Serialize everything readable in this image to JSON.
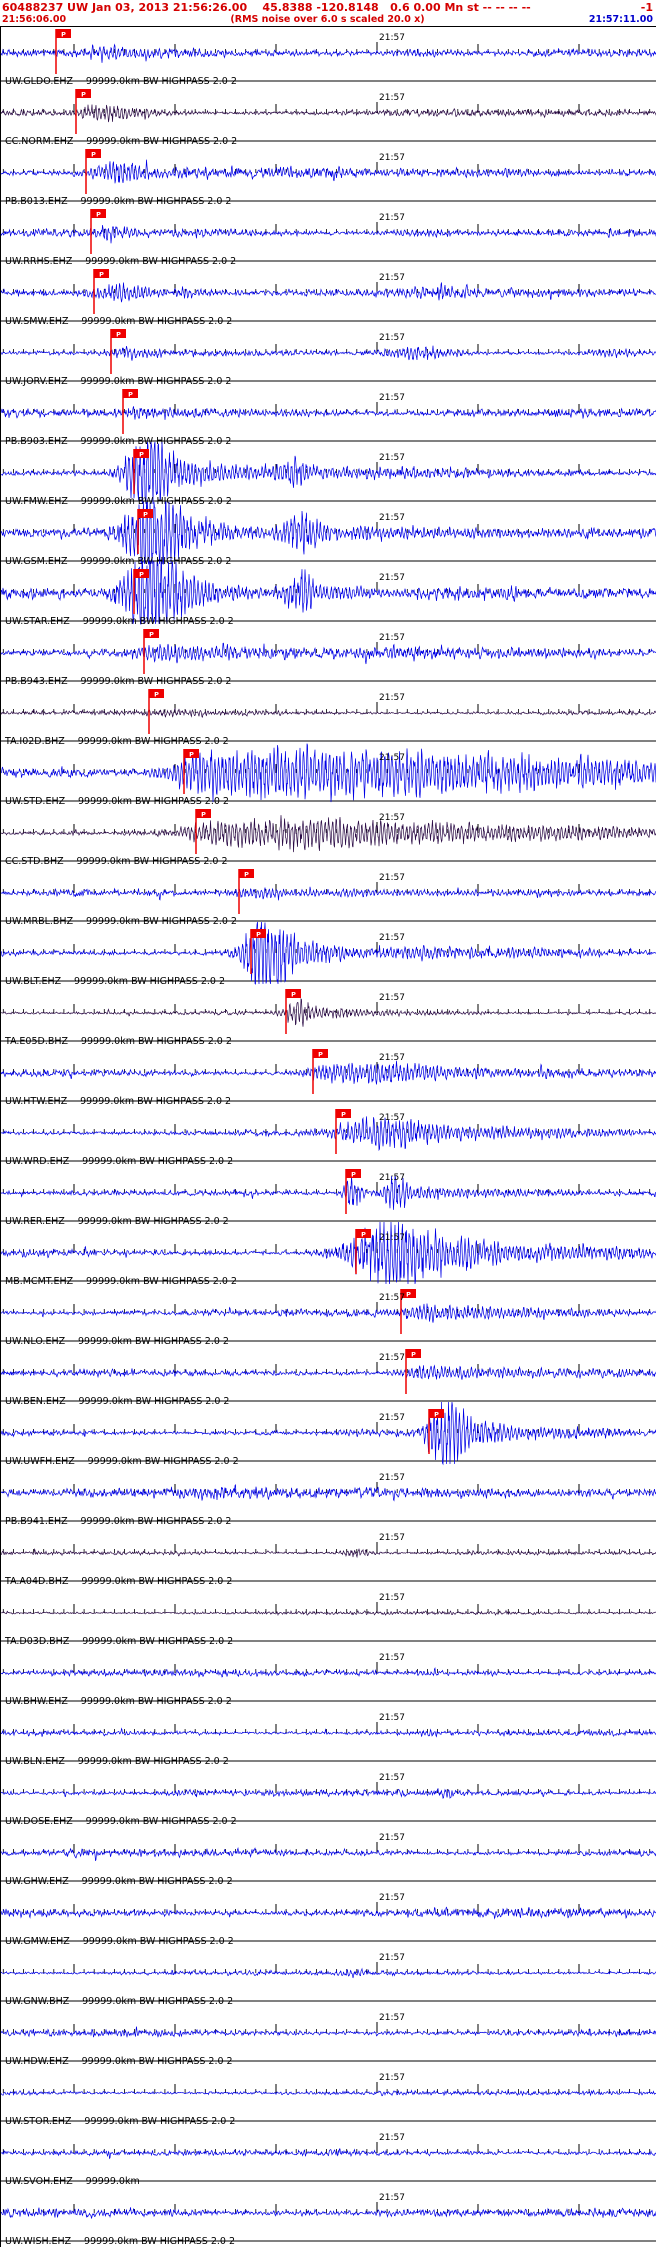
{
  "header": {
    "line1": "60488237 UW Jan 03, 2013 21:56:26.00    45.8388 -120.8148   0.6 0.00 Mn st -- -- -- --",
    "line1_right": "-1",
    "start_time": "21:56:06.00",
    "note": "(RMS noise over 6.0 s scaled 20.0 x)",
    "end_time": "21:57:11.00"
  },
  "time_label": "21:57",
  "pick_label": "P",
  "colors": {
    "blue": "#0000e6",
    "dark": "#2a0a45",
    "pick": "#ee0000",
    "tick": "#000000",
    "header_red": "#d40000",
    "header_blue": "#0000cc"
  },
  "traces": [
    {
      "label": "UW.GLDO.EHZ -- 99999.0km BW HIGHPASS 2.0 2",
      "color": "blue",
      "pick": 55,
      "noise": 2.2,
      "bursts": [
        [
          105,
          18,
          5
        ],
        [
          150,
          30,
          3
        ],
        [
          420,
          30,
          3
        ],
        [
          560,
          40,
          2.5
        ]
      ]
    },
    {
      "label": "CC.NORM.EHZ -- 99999.0km BW HIGHPASS 2.0 2",
      "color": "dark",
      "pick": 75,
      "noise": 1.8,
      "bursts": [
        [
          100,
          20,
          7
        ],
        [
          140,
          40,
          3
        ],
        [
          430,
          25,
          2.5
        ]
      ]
    },
    {
      "label": "PB.B013.EHZ -- 99999.0km BW HIGHPASS 2.0 2",
      "color": "blue",
      "pick": 85,
      "noise": 2.5,
      "bursts": [
        [
          115,
          20,
          9
        ],
        [
          160,
          40,
          4
        ],
        [
          300,
          40,
          3
        ],
        [
          500,
          60,
          2.5
        ]
      ]
    },
    {
      "label": "UW.RRHS.EHZ -- 99999.0km BW HIGHPASS 2.0 2",
      "color": "blue",
      "pick": 90,
      "noise": 2.0,
      "bursts": [
        [
          110,
          15,
          6
        ],
        [
          200,
          50,
          2.5
        ],
        [
          430,
          30,
          3
        ]
      ]
    },
    {
      "label": "UW.SMW.EHZ -- 99999.0km BW HIGHPASS 2.0 2",
      "color": "blue",
      "pick": 93,
      "noise": 2.2,
      "bursts": [
        [
          115,
          20,
          8
        ],
        [
          170,
          45,
          4
        ],
        [
          440,
          30,
          5
        ],
        [
          600,
          40,
          2.5
        ]
      ]
    },
    {
      "label": "UW.JORV.EHZ -- 99999.0km BW HIGHPASS 2.0 2",
      "color": "blue",
      "pick": 110,
      "noise": 1.6,
      "bursts": [
        [
          135,
          22,
          5
        ],
        [
          420,
          28,
          6
        ],
        [
          610,
          30,
          3
        ]
      ]
    },
    {
      "label": "PB.B903.EHZ -- 99999.0km BW HIGHPASS 2.0 2",
      "color": "blue",
      "pick": 122,
      "noise": 2.2,
      "bursts": [
        [
          145,
          18,
          5
        ],
        [
          210,
          45,
          3
        ],
        [
          320,
          40,
          2.5
        ]
      ]
    },
    {
      "label": "UW.FMW.EHZ -- 99999.0km BW HIGHPASS 2.0 2",
      "color": "blue",
      "pick": 133,
      "noise": 2.5,
      "bursts": [
        [
          148,
          16,
          40
        ],
        [
          185,
          30,
          10
        ],
        [
          250,
          40,
          5
        ],
        [
          295,
          12,
          12
        ],
        [
          400,
          60,
          4
        ]
      ]
    },
    {
      "label": "UW.GSM.EHZ -- 99999.0km BW HIGHPASS 2.0 2",
      "color": "blue",
      "pick": 137,
      "noise": 3.0,
      "bursts": [
        [
          150,
          18,
          45
        ],
        [
          190,
          35,
          12
        ],
        [
          300,
          14,
          20
        ],
        [
          360,
          50,
          6
        ],
        [
          500,
          60,
          4
        ]
      ]
    },
    {
      "label": "UW.STAR.EHZ -- 99999.0km BW HIGHPASS 2.0 2",
      "color": "blue",
      "pick": 133,
      "noise": 3.0,
      "bursts": [
        [
          152,
          22,
          45
        ],
        [
          200,
          40,
          10
        ],
        [
          300,
          12,
          22
        ],
        [
          340,
          30,
          6
        ],
        [
          480,
          60,
          4
        ]
      ]
    },
    {
      "label": "PB.B943.EHZ -- 99999.0km BW HIGHPASS 2.0 2",
      "color": "blue",
      "pick": 143,
      "noise": 3.0,
      "bursts": [
        [
          165,
          25,
          6
        ],
        [
          230,
          50,
          4
        ],
        [
          420,
          40,
          4
        ],
        [
          560,
          50,
          3.5
        ]
      ]
    },
    {
      "label": "TA.I02D.BHZ -- 99999.0km BW HIGHPASS 2.0 2",
      "color": "dark",
      "pick": 148,
      "noise": 1.2,
      "bursts": [
        [
          170,
          25,
          3
        ],
        [
          260,
          60,
          1.5
        ]
      ]
    },
    {
      "label": "UW.STD.EHZ -- 99999.0km BW HIGHPASS 2.0 2",
      "color": "blue",
      "pick": 183,
      "noise": 3.0,
      "bursts": [
        [
          210,
          30,
          16
        ],
        [
          280,
          60,
          18
        ],
        [
          380,
          70,
          16
        ],
        [
          500,
          80,
          12
        ],
        [
          610,
          60,
          10
        ]
      ]
    },
    {
      "label": "CC.STD.BHZ -- 99999.0km BW HIGHPASS 2.0 2",
      "color": "dark",
      "pick": 195,
      "noise": 1.8,
      "bursts": [
        [
          215,
          25,
          8
        ],
        [
          280,
          50,
          11
        ],
        [
          370,
          60,
          10
        ],
        [
          480,
          70,
          7
        ],
        [
          600,
          60,
          5
        ]
      ]
    },
    {
      "label": "UW.MRBL.BHZ -- 99999.0km BW HIGHPASS 2.0 2",
      "color": "blue",
      "pick": 238,
      "noise": 1.6,
      "bursts": [
        [
          255,
          20,
          4
        ],
        [
          330,
          60,
          3
        ],
        [
          480,
          70,
          2
        ]
      ]
    },
    {
      "label": "UW.BLT.EHZ -- 99999.0km BW HIGHPASS 2.0 2",
      "color": "blue",
      "pick": 250,
      "noise": 2.0,
      "bursts": [
        [
          265,
          16,
          40
        ],
        [
          300,
          25,
          10
        ],
        [
          380,
          60,
          5
        ],
        [
          520,
          80,
          3.5
        ]
      ]
    },
    {
      "label": "TA.E05D.BHZ -- 99999.0km BW HIGHPASS 2.0 2",
      "color": "dark",
      "pick": 285,
      "noise": 1.0,
      "bursts": [
        [
          297,
          10,
          12
        ],
        [
          330,
          30,
          4
        ],
        [
          420,
          60,
          2
        ]
      ]
    },
    {
      "label": "UW.HTW.EHZ -- 99999.0km BW HIGHPASS 2.0 2",
      "color": "blue",
      "pick": 312,
      "noise": 1.8,
      "bursts": [
        [
          330,
          20,
          6
        ],
        [
          380,
          40,
          9
        ],
        [
          450,
          50,
          4
        ],
        [
          570,
          60,
          2.5
        ]
      ]
    },
    {
      "label": "UW.WRD.EHZ -- 99999.0km BW HIGHPASS 2.0 2",
      "color": "blue",
      "pick": 335,
      "noise": 1.8,
      "bursts": [
        [
          360,
          25,
          8
        ],
        [
          395,
          30,
          11
        ],
        [
          470,
          50,
          5
        ],
        [
          580,
          60,
          3
        ]
      ]
    },
    {
      "label": "UW.RER.EHZ -- 99999.0km BW HIGHPASS 2.0 2",
      "color": "blue",
      "pick": 345,
      "noise": 1.4,
      "bursts": [
        [
          352,
          6,
          18
        ],
        [
          395,
          8,
          16
        ],
        [
          420,
          40,
          5
        ],
        [
          520,
          60,
          3
        ]
      ]
    },
    {
      "label": "MB.MCMT.EHZ -- 99999.0km BW HIGHPASS 2.0 2",
      "color": "blue",
      "pick": 355,
      "noise": 2.0,
      "bursts": [
        [
          385,
          30,
          30
        ],
        [
          440,
          35,
          14
        ],
        [
          520,
          50,
          7
        ],
        [
          610,
          40,
          5
        ]
      ]
    },
    {
      "label": "UW.NLO.EHZ -- 99999.0km BW HIGHPASS 2.0 2",
      "color": "blue",
      "pick": 400,
      "noise": 1.8,
      "bursts": [
        [
          420,
          20,
          6
        ],
        [
          470,
          40,
          5
        ],
        [
          560,
          60,
          3.5
        ]
      ]
    },
    {
      "label": "UW.BEN.EHZ -- 99999.0km BW HIGHPASS 2.0 2",
      "color": "blue",
      "pick": 405,
      "noise": 1.8,
      "bursts": [
        [
          430,
          25,
          6
        ],
        [
          500,
          50,
          4
        ],
        [
          600,
          40,
          3
        ]
      ]
    },
    {
      "label": "UW.UWFH.EHZ -- 99999.0km BW HIGHPASS 2.0 2",
      "color": "blue",
      "pick": 428,
      "noise": 2.0,
      "bursts": [
        [
          445,
          14,
          34
        ],
        [
          480,
          25,
          9
        ],
        [
          560,
          50,
          5
        ]
      ]
    },
    {
      "label": "PB.B941.EHZ -- 99999.0km BW HIGHPASS 2.0 2",
      "color": "blue",
      "pick": null,
      "noise": 3.2,
      "bursts": [
        [
          200,
          80,
          2
        ],
        [
          450,
          60,
          3
        ],
        [
          600,
          40,
          2
        ]
      ]
    },
    {
      "label": "TA.A04D.BHZ -- 99999.0km BW HIGHPASS 2.0 2",
      "color": "dark",
      "pick": null,
      "noise": 1.0,
      "bursts": [
        [
          355,
          12,
          4
        ],
        [
          500,
          60,
          1
        ]
      ]
    },
    {
      "label": "TA.D03D.BHZ -- 99999.0km BW HIGHPASS 2.0 2",
      "color": "dark",
      "pick": null,
      "noise": 0.9,
      "bursts": [
        [
          300,
          80,
          0.8
        ]
      ]
    },
    {
      "label": "UW.BHW.EHZ -- 99999.0km BW HIGHPASS 2.0 2",
      "color": "blue",
      "pick": null,
      "noise": 1.8,
      "bursts": [
        [
          450,
          60,
          1.5
        ]
      ]
    },
    {
      "label": "UW.BLN.EHZ -- 99999.0km BW HIGHPASS 2.0 2",
      "color": "blue",
      "pick": null,
      "noise": 1.4,
      "bursts": [
        [
          430,
          8,
          4
        ]
      ]
    },
    {
      "label": "UW.DOSE.EHZ -- 99999.0km BW HIGHPASS 2.0 2",
      "color": "blue",
      "pick": null,
      "noise": 1.8,
      "bursts": [
        [
          445,
          8,
          5
        ],
        [
          200,
          60,
          1.5
        ]
      ]
    },
    {
      "label": "UW.GHW.EHZ -- 99999.0km BW HIGHPASS 2.0 2",
      "color": "blue",
      "pick": null,
      "noise": 1.8,
      "bursts": [
        [
          300,
          80,
          1.5
        ]
      ]
    },
    {
      "label": "UW.GMW.EHZ -- 99999.0km BW HIGHPASS 2.0 2",
      "color": "blue",
      "pick": null,
      "noise": 2.2,
      "bursts": [
        [
          150,
          60,
          1.5
        ],
        [
          520,
          60,
          1.5
        ]
      ]
    },
    {
      "label": "UW.GNW.BHZ -- 99999.0km BW HIGHPASS 2.0 2",
      "color": "blue",
      "pick": null,
      "noise": 1.3,
      "bursts": [
        [
          350,
          10,
          3
        ]
      ]
    },
    {
      "label": "UW.HDW.EHZ -- 99999.0km BW HIGHPASS 2.0 2",
      "color": "blue",
      "pick": null,
      "noise": 1.8,
      "bursts": []
    },
    {
      "label": "UW.STOR.EHZ -- 99999.0km BW HIGHPASS 2.0 2",
      "color": "blue",
      "pick": null,
      "noise": 1.3,
      "bursts": []
    },
    {
      "label": "UW.SVOH.EHZ -- 99999.0km",
      "color": "blue",
      "pick": null,
      "noise": 1.7,
      "bursts": []
    },
    {
      "label": "UW.WISH.EHZ -- 99999.0km BW HIGHPASS 2.0 2",
      "color": "blue",
      "pick": null,
      "noise": 2.2,
      "bursts": [
        [
          100,
          60,
          1.5
        ],
        [
          400,
          80,
          1.5
        ]
      ]
    }
  ]
}
